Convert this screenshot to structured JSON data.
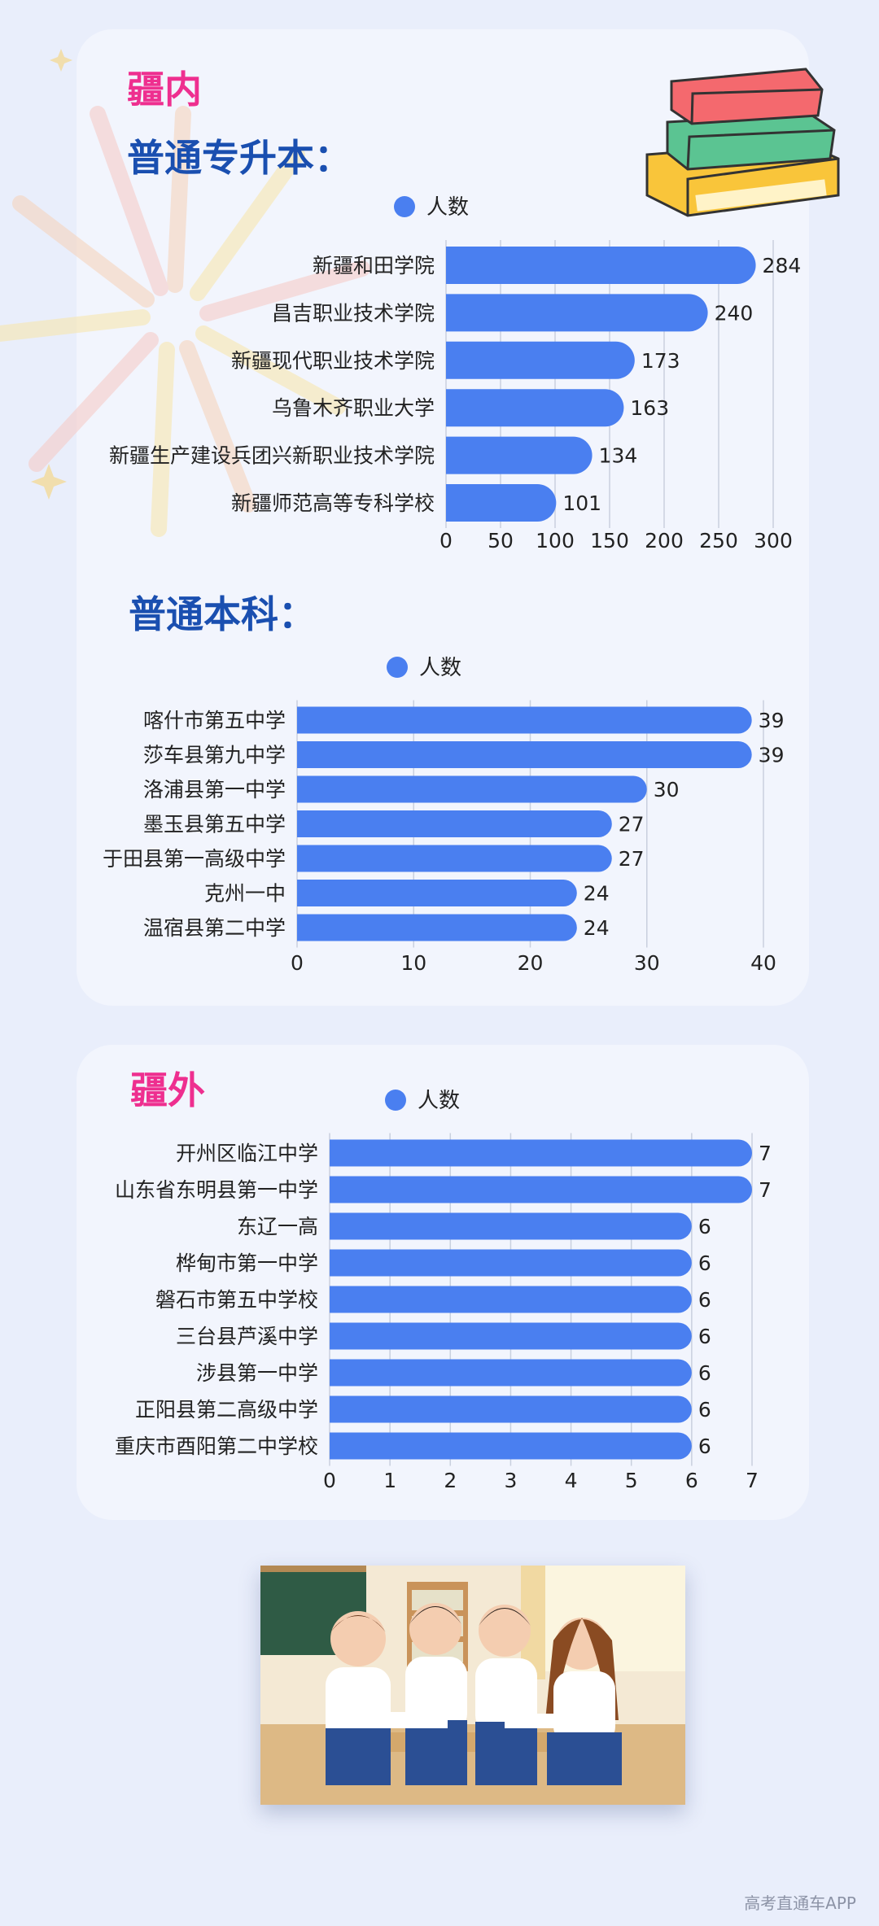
{
  "sections": {
    "inner": {
      "heading": "疆内"
    },
    "outer": {
      "heading": "疆外"
    }
  },
  "colors": {
    "bar": "#4a7ff0",
    "heading_blue": "#1a4fb0",
    "heading_pink": "#ee2f8f",
    "label": "#222222",
    "grid": "#c9d0de"
  },
  "watermark": "高考直通车APP",
  "chart_data": [
    {
      "type": "bar",
      "orientation": "horizontal",
      "title": "普通专升本：",
      "categories": [
        "新疆和田学院",
        "昌吉职业技术学院",
        "新疆现代职业技术学院",
        "乌鲁木齐职业大学",
        "新疆生产建设兵团兴新职业技术学院",
        "新疆师范高等专科学校"
      ],
      "series": [
        {
          "name": "人数",
          "values": [
            284,
            240,
            173,
            163,
            134,
            101
          ]
        }
      ],
      "xticks": [
        "0",
        "50",
        "100",
        "150",
        "200",
        "250",
        "300"
      ],
      "xlim": [
        0,
        300
      ],
      "grid": true,
      "legend": "top-center"
    },
    {
      "type": "bar",
      "orientation": "horizontal",
      "title": "普通本科：",
      "categories": [
        "喀什市第五中学",
        "莎车县第九中学",
        "洛浦县第一中学",
        "墨玉县第五中学",
        "于田县第一高级中学",
        "克州一中",
        "温宿县第二中学"
      ],
      "series": [
        {
          "name": "人数",
          "values": [
            39,
            39,
            30,
            27,
            27,
            24,
            24
          ]
        }
      ],
      "xticks": [
        "0",
        "10",
        "20",
        "30",
        "40"
      ],
      "xlim": [
        0,
        40
      ],
      "grid": true,
      "legend": "top-center"
    },
    {
      "type": "bar",
      "orientation": "horizontal",
      "title": "",
      "categories": [
        "开州区临江中学",
        "山东省东明县第一中学",
        "东辽一高",
        "桦甸市第一中学",
        "磐石市第五中学校",
        "三台县芦溪中学",
        "涉县第一中学",
        "正阳县第二高级中学",
        "重庆市酉阳第二中学校"
      ],
      "series": [
        {
          "name": "人数",
          "values": [
            7,
            7,
            6,
            6,
            6,
            6,
            6,
            6,
            6
          ]
        }
      ],
      "xticks": [
        "0",
        "1",
        "2",
        "3",
        "4",
        "5",
        "6",
        "7"
      ],
      "xlim": [
        0,
        7
      ],
      "grid": true,
      "legend": "top-center"
    }
  ]
}
